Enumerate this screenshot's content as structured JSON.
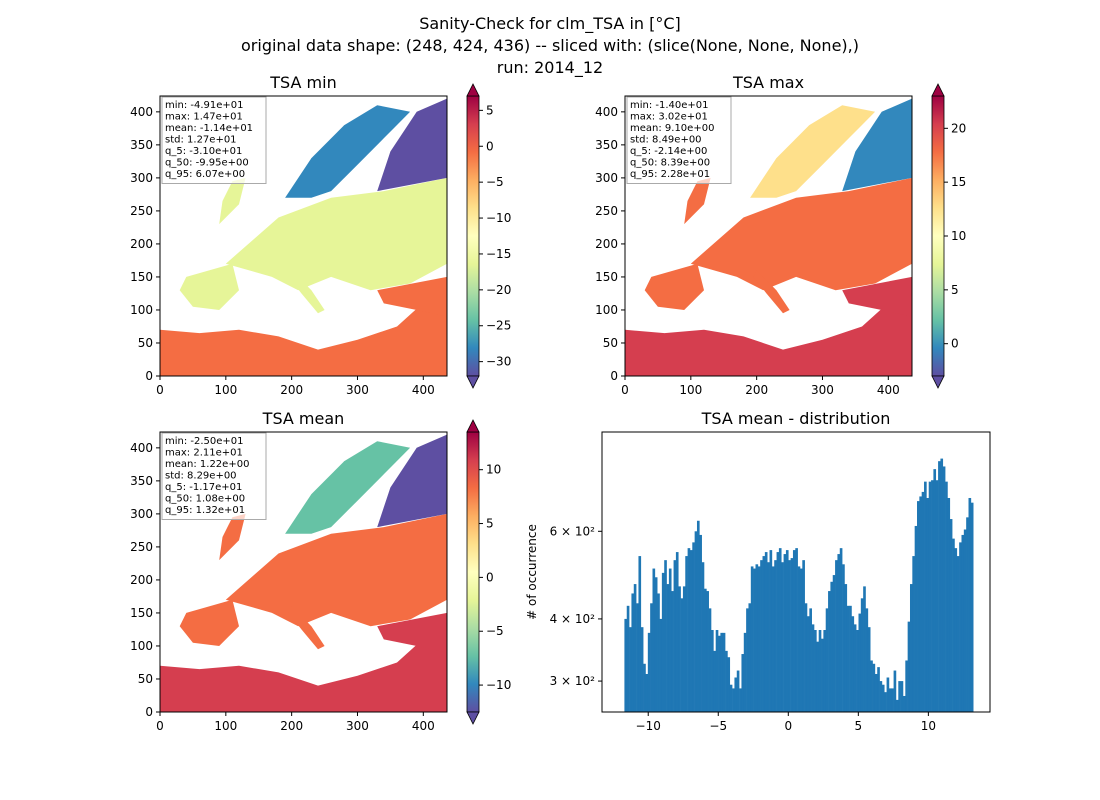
{
  "suptitle": {
    "line1": "Sanity-Check for clm_TSA in [°C]",
    "line2": "original data shape: (248, 424, 436) -- sliced with: (slice(None, None, None),)",
    "line3": "run: 2014_12"
  },
  "colors": {
    "histogram_bar": "#1f77b4",
    "cmap": [
      "#5e4fa2",
      "#3288bd",
      "#66c2a5",
      "#abdda4",
      "#e6f598",
      "#ffffbf",
      "#fee08b",
      "#fdae61",
      "#f46d43",
      "#d53e4f",
      "#9e0142"
    ]
  },
  "chart_data": [
    {
      "type": "heatmap",
      "title": "TSA min",
      "xlim": [
        0,
        436
      ],
      "ylim": [
        0,
        424
      ],
      "xticks": [
        "0",
        "100",
        "200",
        "300",
        "400"
      ],
      "yticks": [
        "0",
        "50",
        "100",
        "150",
        "200",
        "250",
        "300",
        "350",
        "400"
      ],
      "colorbar": {
        "vmin": -32,
        "vmax": 7,
        "ticks": [
          "5",
          "0",
          "−5",
          "−10",
          "−15",
          "−20",
          "−25",
          "−30"
        ],
        "tick_values": [
          5,
          0,
          -5,
          -10,
          -15,
          -20,
          -25,
          -30
        ]
      },
      "stats": [
        "min: -4.91e+01",
        "max: 1.47e+01",
        "mean: -1.14e+01",
        "std: 1.27e+01",
        "q_5: -3.10e+01",
        "q_50: -9.95e+00",
        "q_95: 6.07e+00"
      ]
    },
    {
      "type": "heatmap",
      "title": "TSA max",
      "xlim": [
        0,
        436
      ],
      "ylim": [
        0,
        424
      ],
      "xticks": [
        "0",
        "100",
        "200",
        "300",
        "400"
      ],
      "yticks": [
        "0",
        "50",
        "100",
        "150",
        "200",
        "250",
        "300",
        "350",
        "400"
      ],
      "colorbar": {
        "vmin": -3,
        "vmax": 23,
        "ticks": [
          "20",
          "15",
          "10",
          "5",
          "0"
        ],
        "tick_values": [
          20,
          15,
          10,
          5,
          0
        ]
      },
      "stats": [
        "min: -1.40e+01",
        "max: 3.02e+01",
        "mean: 9.10e+00",
        "std: 8.49e+00",
        "q_5: -2.14e+00",
        "q_50: 8.39e+00",
        "q_95: 2.28e+01"
      ]
    },
    {
      "type": "heatmap",
      "title": "TSA mean",
      "xlim": [
        0,
        436
      ],
      "ylim": [
        0,
        424
      ],
      "xticks": [
        "0",
        "100",
        "200",
        "300",
        "400"
      ],
      "yticks": [
        "0",
        "50",
        "100",
        "150",
        "200",
        "250",
        "300",
        "350",
        "400"
      ],
      "colorbar": {
        "vmin": -12.5,
        "vmax": 13.5,
        "ticks": [
          "10",
          "5",
          "0",
          "−5",
          "−10"
        ],
        "tick_values": [
          10,
          5,
          0,
          -5,
          -10
        ]
      },
      "stats": [
        "min: -2.50e+01",
        "max: 2.11e+01",
        "mean: 1.22e+00",
        "std: 8.29e+00",
        "q_5: -1.17e+01",
        "q_50: 1.08e+00",
        "q_95: 1.32e+01"
      ]
    },
    {
      "type": "bar",
      "title": "TSA mean - distribution",
      "ylabel": "# of occurrence",
      "xlim": [
        -13.3,
        14.4
      ],
      "ylim": [
        260,
        950
      ],
      "yscale": "log",
      "xticks": [
        "−10",
        "−5",
        "0",
        "5",
        "10"
      ],
      "xtick_values": [
        -10,
        -5,
        0,
        5,
        10
      ],
      "yticks": [
        "3 × 10²",
        "4 × 10²",
        "6 × 10²"
      ],
      "ytick_values": [
        300,
        400,
        600
      ],
      "bin_range": [
        -11.7,
        13.2
      ],
      "values": [
        400,
        425,
        385,
        450,
        470,
        430,
        535,
        385,
        325,
        310,
        375,
        430,
        505,
        485,
        450,
        400,
        495,
        525,
        470,
        505,
        455,
        525,
        545,
        465,
        440,
        465,
        535,
        555,
        550,
        570,
        600,
        630,
        590,
        520,
        460,
        455,
        420,
        380,
        345,
        380,
        370,
        375,
        375,
        345,
        335,
        295,
        290,
        305,
        315,
        290,
        340,
        375,
        420,
        430,
        510,
        505,
        515,
        510,
        525,
        535,
        545,
        520,
        550,
        510,
        525,
        545,
        555,
        520,
        540,
        550,
        525,
        530,
        550,
        555,
        510,
        505,
        525,
        430,
        405,
        420,
        390,
        380,
        360,
        380,
        365,
        380,
        420,
        455,
        475,
        490,
        525,
        540,
        555,
        515,
        470,
        425,
        425,
        405,
        390,
        380,
        410,
        440,
        465,
        420,
        385,
        330,
        325,
        310,
        320,
        300,
        295,
        285,
        305,
        290,
        290,
        315,
        275,
        300,
        300,
        280,
        330,
        395,
        470,
        535,
        615,
        690,
        705,
        720,
        755,
        700,
        755,
        760,
        800,
        760,
        830,
        840,
        810,
        755,
        700,
        635,
        580,
        555,
        535,
        570,
        590,
        605,
        640,
        700,
        685
      ]
    }
  ]
}
